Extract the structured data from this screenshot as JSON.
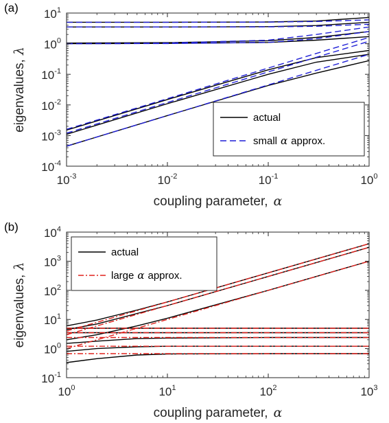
{
  "chart_data": [
    {
      "type": "line",
      "panel_label": "(a)",
      "xlabel": "coupling parameter,",
      "xlabel_symbol": "α",
      "ylabel": "eigenvalues,",
      "ylabel_symbol": "λ",
      "xscale": "log",
      "yscale": "log",
      "xlim": [
        0.001,
        1
      ],
      "ylim": [
        0.0001,
        10
      ],
      "x_ticks": [
        {
          "value": 0.001,
          "base": "10",
          "exp": "-3"
        },
        {
          "value": 0.01,
          "base": "10",
          "exp": "-2"
        },
        {
          "value": 0.1,
          "base": "10",
          "exp": "-1"
        },
        {
          "value": 1,
          "base": "10",
          "exp": "0"
        }
      ],
      "y_ticks": [
        {
          "value": 0.0001,
          "base": "10",
          "exp": "-4"
        },
        {
          "value": 0.001,
          "base": "10",
          "exp": "-3"
        },
        {
          "value": 0.01,
          "base": "10",
          "exp": "-2"
        },
        {
          "value": 0.1,
          "base": "10",
          "exp": "-1"
        },
        {
          "value": 1,
          "base": "10",
          "exp": "0"
        },
        {
          "value": 10,
          "base": "10",
          "exp": "1"
        }
      ],
      "legend_position": "bottom-right",
      "legend": [
        {
          "label": "actual",
          "symbol": "",
          "suffix": "",
          "color": "#000000",
          "dash": "solid"
        },
        {
          "label": "small",
          "symbol": "α",
          "suffix": "approx.",
          "color": "#1f1fd6",
          "dash": "dashed"
        }
      ],
      "series": [
        {
          "style": "actual",
          "x": [
            0.001,
            0.01,
            0.1,
            0.3,
            1
          ],
          "y": [
            5.0,
            5.0,
            5.1,
            5.5,
            7.2
          ]
        },
        {
          "style": "actual",
          "x": [
            0.001,
            0.01,
            0.1,
            0.3,
            1
          ],
          "y": [
            3.5,
            3.5,
            3.6,
            3.9,
            5.0
          ]
        },
        {
          "style": "actual",
          "x": [
            0.001,
            0.01,
            0.1,
            0.3,
            1
          ],
          "y": [
            1.05,
            1.08,
            1.25,
            1.6,
            2.5
          ]
        },
        {
          "style": "actual",
          "x": [
            0.001,
            0.01,
            0.1,
            0.3,
            1
          ],
          "y": [
            1.0,
            1.02,
            1.1,
            1.3,
            1.7
          ]
        },
        {
          "style": "actual",
          "x": [
            0.001,
            0.01,
            0.1,
            0.3,
            1
          ],
          "y": [
            0.0015,
            0.015,
            0.14,
            0.35,
            0.6
          ]
        },
        {
          "style": "actual",
          "x": [
            0.001,
            0.01,
            0.1,
            0.3,
            1
          ],
          "y": [
            0.0011,
            0.011,
            0.1,
            0.25,
            0.45
          ]
        },
        {
          "style": "actual",
          "x": [
            0.001,
            0.01,
            0.1,
            0.3,
            1
          ],
          "y": [
            0.00045,
            0.0045,
            0.043,
            0.11,
            0.28
          ]
        },
        {
          "style": "approx",
          "x": [
            0.001,
            0.01,
            0.1,
            0.3,
            1
          ],
          "y": [
            5.0,
            5.0,
            5.05,
            5.3,
            6.0
          ]
        },
        {
          "style": "approx",
          "x": [
            0.001,
            0.01,
            0.1,
            0.3,
            1
          ],
          "y": [
            3.5,
            3.5,
            3.55,
            3.7,
            4.3
          ]
        },
        {
          "style": "approx",
          "x": [
            0.001,
            0.01,
            0.1,
            0.3,
            1
          ],
          "y": [
            1.0,
            1.05,
            1.3,
            2.0,
            3.5
          ]
        },
        {
          "style": "approx",
          "x": [
            0.001,
            0.01,
            0.1,
            0.3,
            1
          ],
          "y": [
            1.0,
            1.01,
            1.1,
            1.45,
            2.5
          ]
        },
        {
          "style": "approx",
          "x": [
            0.001,
            0.01,
            0.1,
            0.3,
            1
          ],
          "y": [
            0.0016,
            0.016,
            0.16,
            0.48,
            1.6
          ]
        },
        {
          "style": "approx",
          "x": [
            0.001,
            0.01,
            0.1,
            0.3,
            1
          ],
          "y": [
            0.0012,
            0.012,
            0.12,
            0.36,
            1.2
          ]
        },
        {
          "style": "approx",
          "x": [
            0.001,
            0.01,
            0.1,
            0.3,
            1
          ],
          "y": [
            0.00045,
            0.0045,
            0.045,
            0.135,
            0.45
          ]
        }
      ]
    },
    {
      "type": "line",
      "panel_label": "(b)",
      "xlabel": "coupling parameter,",
      "xlabel_symbol": "α",
      "ylabel": "eigenvalues,",
      "ylabel_symbol": "λ",
      "xscale": "log",
      "yscale": "log",
      "xlim": [
        1,
        1000
      ],
      "ylim": [
        0.1,
        10000
      ],
      "x_ticks": [
        {
          "value": 1,
          "base": "10",
          "exp": "0"
        },
        {
          "value": 10,
          "base": "10",
          "exp": "1"
        },
        {
          "value": 100,
          "base": "10",
          "exp": "2"
        },
        {
          "value": 1000,
          "base": "10",
          "exp": "3"
        }
      ],
      "y_ticks": [
        {
          "value": 0.1,
          "base": "10",
          "exp": "-1"
        },
        {
          "value": 1,
          "base": "10",
          "exp": "0"
        },
        {
          "value": 10,
          "base": "10",
          "exp": "1"
        },
        {
          "value": 100,
          "base": "10",
          "exp": "2"
        },
        {
          "value": 1000,
          "base": "10",
          "exp": "3"
        },
        {
          "value": 10000,
          "base": "10",
          "exp": "4"
        }
      ],
      "legend_position": "top-left",
      "legend": [
        {
          "label": "actual",
          "symbol": "",
          "suffix": "",
          "color": "#000000",
          "dash": "solid"
        },
        {
          "label": "large",
          "symbol": "α",
          "suffix": "approx.",
          "color": "#e0201b",
          "dash": "dashdot"
        }
      ],
      "series": [
        {
          "style": "actual",
          "x": [
            1,
            2,
            5,
            10,
            100,
            1000
          ],
          "y": [
            6.0,
            9.5,
            21,
            40,
            400,
            4000
          ]
        },
        {
          "style": "actual",
          "x": [
            1,
            2,
            5,
            10,
            100,
            1000
          ],
          "y": [
            4.5,
            7.0,
            16,
            30,
            300,
            3000
          ]
        },
        {
          "style": "actual",
          "x": [
            1,
            2,
            5,
            10,
            100,
            1000
          ],
          "y": [
            2.0,
            3.0,
            6.0,
            11,
            100,
            1000
          ]
        },
        {
          "style": "actual",
          "x": [
            1,
            10,
            100,
            1000
          ],
          "y": [
            5.0,
            5.0,
            5.0,
            5.0
          ]
        },
        {
          "style": "actual",
          "x": [
            1,
            10,
            100,
            1000
          ],
          "y": [
            3.5,
            3.5,
            3.5,
            3.5
          ]
        },
        {
          "style": "actual",
          "x": [
            1,
            2,
            5,
            10,
            100,
            1000
          ],
          "y": [
            1.5,
            1.8,
            2.2,
            2.3,
            2.4,
            2.4
          ]
        },
        {
          "style": "actual",
          "x": [
            1,
            2,
            5,
            10,
            100,
            1000
          ],
          "y": [
            0.8,
            1.0,
            1.15,
            1.2,
            1.2,
            1.2
          ]
        },
        {
          "style": "actual",
          "x": [
            1,
            2,
            5,
            10,
            100,
            1000
          ],
          "y": [
            0.33,
            0.45,
            0.6,
            0.65,
            0.67,
            0.67
          ]
        },
        {
          "style": "approx",
          "x": [
            1,
            1000
          ],
          "y": [
            4.0,
            4000
          ]
        },
        {
          "style": "approx",
          "x": [
            1,
            1000
          ],
          "y": [
            3.0,
            3000
          ]
        },
        {
          "style": "approx",
          "x": [
            1,
            1000
          ],
          "y": [
            1.0,
            1000
          ]
        },
        {
          "style": "approx",
          "x": [
            1,
            1000
          ],
          "y": [
            5.0,
            5.0
          ]
        },
        {
          "style": "approx",
          "x": [
            1,
            1000
          ],
          "y": [
            3.5,
            3.5
          ]
        },
        {
          "style": "approx",
          "x": [
            1,
            1000
          ],
          "y": [
            2.4,
            2.4
          ]
        },
        {
          "style": "approx",
          "x": [
            1,
            1000
          ],
          "y": [
            1.2,
            1.2
          ]
        },
        {
          "style": "approx",
          "x": [
            1,
            1000
          ],
          "y": [
            0.67,
            0.67
          ]
        }
      ]
    }
  ]
}
